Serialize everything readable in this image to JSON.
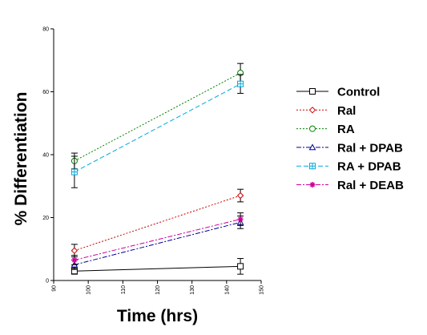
{
  "chart_data": {
    "type": "line",
    "xlabel": "Time (hrs)",
    "ylabel": "% Differentiation",
    "xlim": [
      90,
      150
    ],
    "ylim": [
      0,
      80
    ],
    "xticks": [
      90,
      100,
      110,
      120,
      130,
      140,
      150
    ],
    "yticks": [
      0,
      20,
      40,
      60,
      80
    ],
    "grid": false,
    "legend_position": "right",
    "series": [
      {
        "name": "Control",
        "color": "#000000",
        "marker": "square",
        "dash": "solid",
        "x": [
          96,
          144
        ],
        "y": [
          3,
          4.5
        ],
        "err": [
          1,
          2.5
        ]
      },
      {
        "name": "Ral",
        "color": "#cc0000",
        "marker": "diamond",
        "dash": "dotted",
        "x": [
          96,
          144
        ],
        "y": [
          9.5,
          27
        ],
        "err": [
          2,
          2
        ]
      },
      {
        "name": "RA",
        "color": "#008000",
        "marker": "circle",
        "dash": "dotted",
        "x": [
          96,
          144
        ],
        "y": [
          38,
          66
        ],
        "err": [
          2.5,
          3
        ]
      },
      {
        "name": "Ral + DPAB",
        "color": "#000099",
        "marker": "triangle",
        "dash": "dashdot",
        "x": [
          96,
          144
        ],
        "y": [
          5,
          18.5
        ],
        "err": [
          1.5,
          2
        ]
      },
      {
        "name": "RA + DPAB",
        "color": "#00aadd",
        "marker": "square-plus",
        "dash": "dashed",
        "x": [
          96,
          144
        ],
        "y": [
          34.5,
          62.5
        ],
        "err": [
          5,
          3
        ]
      },
      {
        "name": "Ral + DEAB",
        "color": "#cc0099",
        "marker": "star",
        "dash": "dashdot",
        "x": [
          96,
          144
        ],
        "y": [
          6.5,
          19.5
        ],
        "err": [
          1.5,
          2
        ]
      }
    ]
  }
}
